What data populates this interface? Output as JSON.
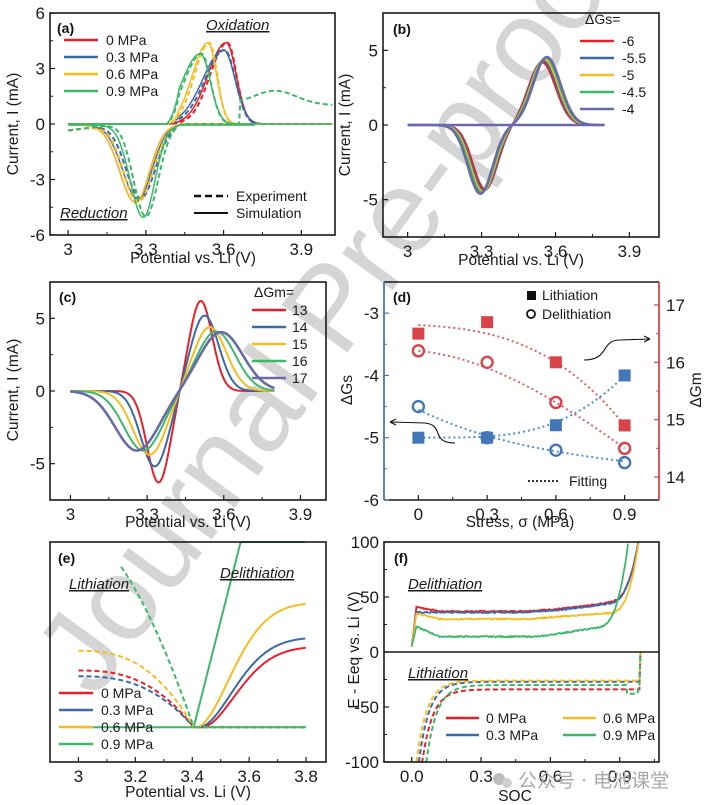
{
  "figure": {
    "watermark": "Journal Pre-proof",
    "source_badge": "公众号 · 电池课堂",
    "colors": {
      "0 MPa": "#e8202a",
      "0.3 MPa": "#3a6aa8",
      "0.6 MPa": "#f5bd1f",
      "0.9 MPa": "#3cb86a",
      "extra": "#6a6aa8",
      "lithiation_axis": "#4477b8",
      "delithiation_axis": "#d9434a",
      "fit_blue": "#4a90d9",
      "fit_red": "#e06066"
    }
  },
  "chart_data": [
    {
      "panel": "(a)",
      "type": "line",
      "xlabel": "Potential vs. Li (V)",
      "ylabel": "Current, I (mA)",
      "xlim": [
        2.93,
        4.02
      ],
      "ylim": [
        -6,
        6
      ],
      "xticks": [
        "3",
        "3.3",
        "3.6",
        "3.9"
      ],
      "yticks": [
        "6",
        "3",
        "0",
        "-3",
        "-6"
      ],
      "annotations": [
        "Oxidation",
        "Reduction"
      ],
      "legend": [
        "0 MPa",
        "0.3 MPa",
        "0.6 MPa",
        "0.9 MPa"
      ],
      "style_legend": [
        "Experiment",
        "Simulation"
      ],
      "series": [
        {
          "name": "0 MPa",
          "ox_peak_v": 3.61,
          "ox_peak_i": 4.4,
          "red_peak_v": 3.26,
          "red_peak_i": -4.2,
          "ox_width": 0.07,
          "red_width": 0.06
        },
        {
          "name": "0.3 MPa",
          "ox_peak_v": 3.6,
          "ox_peak_i": 4.0,
          "red_peak_v": 3.27,
          "red_peak_i": -4.0,
          "ox_width": 0.08,
          "red_width": 0.06
        },
        {
          "name": "0.6 MPa",
          "ox_peak_v": 3.54,
          "ox_peak_i": 4.4,
          "red_peak_v": 3.26,
          "red_peak_i": -4.2,
          "ox_width": 0.06,
          "red_width": 0.06
        },
        {
          "name": "0.9 MPa",
          "ox_peak_v": 3.51,
          "ox_peak_i": 3.8,
          "red_peak_v": 3.29,
          "red_peak_i": -5.0,
          "ox_width": 0.07,
          "red_width": 0.05
        }
      ]
    },
    {
      "panel": "(b)",
      "type": "line",
      "xlabel": "Potential vs. Li (V)",
      "ylabel": "Current, I (mA)",
      "xlim": [
        2.9,
        4.0
      ],
      "ylim": [
        -7.5,
        7.5
      ],
      "xticks": [
        "3",
        "3.3",
        "3.6",
        "3.9"
      ],
      "yticks": [
        "5",
        "0",
        "-5"
      ],
      "legend_title": "ΔGs=",
      "legend": [
        "-6",
        "-5.5",
        "-5",
        "-4.5",
        "-4"
      ],
      "series": [
        {
          "name": "-6",
          "ox_peak_v": 3.545,
          "ox_peak_i": 4.2,
          "red_peak_v": 3.315,
          "red_peak_i": -4.3
        },
        {
          "name": "-5.5",
          "ox_peak_v": 3.55,
          "ox_peak_i": 4.3,
          "red_peak_v": 3.31,
          "red_peak_i": -4.4
        },
        {
          "name": "-5",
          "ox_peak_v": 3.555,
          "ox_peak_i": 4.4,
          "red_peak_v": 3.305,
          "red_peak_i": -4.45
        },
        {
          "name": "-4.5",
          "ox_peak_v": 3.56,
          "ox_peak_i": 4.5,
          "red_peak_v": 3.3,
          "red_peak_i": -4.5
        },
        {
          "name": "-4",
          "ox_peak_v": 3.565,
          "ox_peak_i": 4.55,
          "red_peak_v": 3.295,
          "red_peak_i": -4.6
        }
      ]
    },
    {
      "panel": "(c)",
      "type": "line",
      "xlabel": "Potential vs. Li (V)",
      "ylabel": "Current, I (mA)",
      "xlim": [
        2.93,
        4.0
      ],
      "ylim": [
        -7.5,
        7.5
      ],
      "xticks": [
        "3",
        "3.3",
        "3.6",
        "3.9"
      ],
      "yticks": [
        "5",
        "0",
        "-5"
      ],
      "legend_title": "ΔGm=",
      "legend": [
        "13",
        "14",
        "15",
        "16",
        "17"
      ],
      "series": [
        {
          "name": "13",
          "ox_peak_v": 3.51,
          "ox_peak_i": 6.2,
          "red_peak_v": 3.345,
          "red_peak_i": -6.3,
          "width": 0.045
        },
        {
          "name": "14",
          "ox_peak_v": 3.525,
          "ox_peak_i": 5.2,
          "red_peak_v": 3.33,
          "red_peak_i": -5.2,
          "width": 0.055
        },
        {
          "name": "15",
          "ox_peak_v": 3.545,
          "ox_peak_i": 4.4,
          "red_peak_v": 3.31,
          "red_peak_i": -4.4,
          "width": 0.065
        },
        {
          "name": "16",
          "ox_peak_v": 3.57,
          "ox_peak_i": 4.1,
          "red_peak_v": 3.285,
          "red_peak_i": -4.1,
          "width": 0.075
        },
        {
          "name": "17",
          "ox_peak_v": 3.59,
          "ox_peak_i": 4.05,
          "red_peak_v": 3.26,
          "red_peak_i": -4.1,
          "width": 0.085
        }
      ]
    },
    {
      "panel": "(d)",
      "type": "scatter",
      "xlabel": "Stress, σ (MPa)",
      "ylabel_left": "ΔGs",
      "ylabel_right": "ΔGm",
      "xlim": [
        -0.15,
        1.05
      ],
      "ylim_left": [
        -6,
        -2.5
      ],
      "ylim_right": [
        13.6,
        17.4
      ],
      "xticks": [
        "0",
        "0.3",
        "0.6",
        "0.9"
      ],
      "yticks_left": [
        "-3",
        "-4",
        "-5",
        "-6"
      ],
      "yticks_right": [
        "17",
        "16",
        "15",
        "14"
      ],
      "legend": [
        "Lithiation",
        "Delithiation",
        "Fitting"
      ],
      "x": [
        0,
        0.3,
        0.6,
        0.9
      ],
      "series": [
        {
          "name": "ΔGs Lithiation",
          "axis": "left",
          "marker": "square",
          "color": "blue",
          "values": [
            -5.0,
            -5.0,
            -4.8,
            -4.0
          ],
          "fit": [
            -5.0,
            -4.98,
            -4.75,
            -4.0
          ]
        },
        {
          "name": "ΔGs Delithiation",
          "axis": "left",
          "marker": "circle",
          "color": "blue",
          "values": [
            -4.5,
            -5.0,
            -5.2,
            -5.4
          ],
          "fit": [
            -4.55,
            -4.97,
            -5.22,
            -5.38
          ]
        },
        {
          "name": "ΔGm Lithiation",
          "axis": "right",
          "marker": "square",
          "color": "red",
          "values": [
            16.5,
            16.7,
            16.0,
            14.9
          ],
          "fit": [
            16.65,
            16.5,
            16.0,
            14.9
          ]
        },
        {
          "name": "ΔGm Delithiation",
          "axis": "right",
          "marker": "circle",
          "color": "red",
          "values": [
            16.2,
            16.0,
            15.3,
            14.5
          ],
          "fit": [
            16.2,
            15.9,
            15.3,
            14.5
          ]
        }
      ]
    },
    {
      "panel": "(e)",
      "type": "line",
      "xlabel": "Potential vs. Li (V)",
      "ylabel": "",
      "xlim": [
        2.93,
        3.87
      ],
      "xticks": [
        "3",
        "3.2",
        "3.4",
        "3.6",
        "3.8"
      ],
      "annotations": [
        "Lithiation",
        "Delithiation"
      ],
      "legend": [
        "0 MPa",
        "0.3 MPa",
        "0.6 MPa",
        "0.9 MPa"
      ],
      "series": [
        {
          "name": "0 MPa",
          "lith_start_level": 0.49,
          "delith_end_level": 0.7,
          "onset_v": 3.435
        },
        {
          "name": "0.3 MPa",
          "lith_start_level": 0.44,
          "delith_end_level": 0.78,
          "onset_v": 3.425
        },
        {
          "name": "0.6 MPa",
          "lith_start_level": 0.66,
          "delith_end_level": 1.08,
          "onset_v": 3.415
        },
        {
          "name": "0.9 MPa",
          "lith_start_level": 1.2,
          "delith_end_level": 1.6,
          "onset_v": 3.405
        }
      ]
    },
    {
      "panel": "(f)",
      "type": "line",
      "xlabel": "SOC",
      "ylabel": "E - Eeq vs. Li (V)",
      "xlim": [
        -0.1,
        1.05
      ],
      "ylim": [
        -100,
        100
      ],
      "xticks": [
        "0.0",
        "0.3",
        "0.6",
        "0.9"
      ],
      "yticks": [
        "100",
        "50",
        "0",
        "-50",
        "-100"
      ],
      "annotations": [
        "Delithiation",
        "Lithiation"
      ],
      "legend": [
        "0 MPa",
        "0.3 MPa",
        "0.6 MPa",
        "0.9 MPa"
      ],
      "series": [
        {
          "name": "0 MPa",
          "delith_plateau": 37,
          "delith_bump": 41,
          "lith_plateau": -34,
          "lith_soc_start": 0.04
        },
        {
          "name": "0.3 MPa",
          "delith_plateau": 36,
          "delith_bump": 36,
          "lith_plateau": -27,
          "lith_soc_start": 0.03
        },
        {
          "name": "0.6 MPa",
          "delith_plateau": 30,
          "delith_bump": 35,
          "lith_plateau": -26,
          "lith_soc_start": 0.02
        },
        {
          "name": "0.9 MPa",
          "delith_plateau": 14,
          "delith_bump": 23,
          "lith_plateau": -30,
          "lith_soc_start": 0.06
        }
      ]
    }
  ]
}
